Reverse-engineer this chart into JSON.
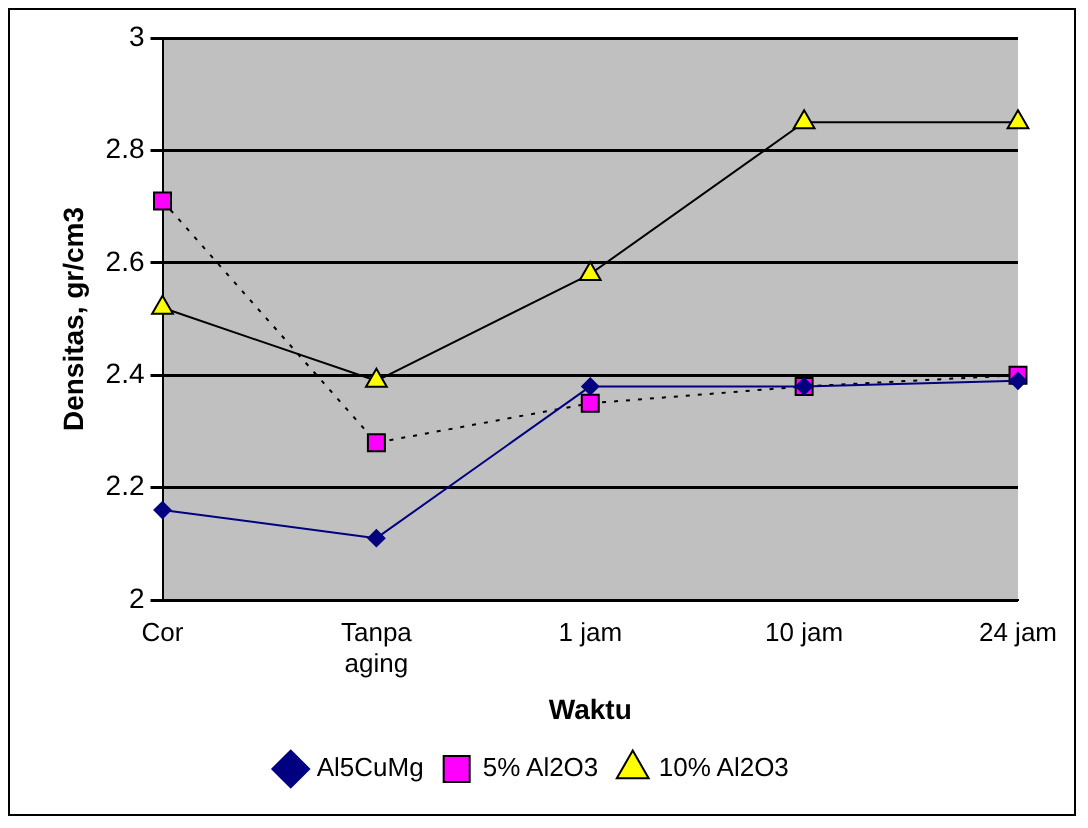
{
  "chart_data": {
    "type": "line",
    "xlabel": "Waktu",
    "ylabel": "Densitas, gr/cm3",
    "categories": [
      "Cor",
      "Tanpa aging",
      "1 jam",
      "10 jam",
      "24 jam"
    ],
    "ylim": [
      2,
      3
    ],
    "yticks": [
      2,
      2.2,
      2.4,
      2.6,
      2.8,
      3
    ],
    "grid": "y",
    "legend": "bottom",
    "series": [
      {
        "name": "Al5CuMg",
        "color": "#000080",
        "values": [
          2.16,
          2.11,
          2.38,
          2.38,
          2.39
        ],
        "marker": "diamond",
        "line_style": "solid"
      },
      {
        "name": "5% Al2O3",
        "color": "#ff00ff",
        "values": [
          2.71,
          2.28,
          2.35,
          2.38,
          2.4
        ],
        "marker": "square",
        "line_style": "dotted"
      },
      {
        "name": "10% Al2O3",
        "color": "#ffff00",
        "values": [
          2.52,
          2.39,
          2.58,
          2.85,
          2.85
        ],
        "marker": "triangle",
        "line_style": "solid"
      }
    ]
  }
}
